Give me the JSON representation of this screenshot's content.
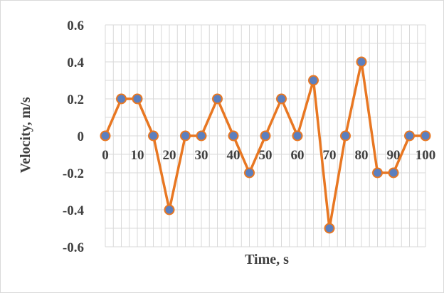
{
  "chart_data": {
    "type": "line",
    "title": "",
    "xlabel": "Time, s",
    "ylabel": "Velocity, m/s",
    "xlim": [
      0,
      100
    ],
    "ylim": [
      -0.6,
      0.6
    ],
    "x_ticks": [
      "0",
      "10",
      "20",
      "30",
      "40",
      "50",
      "60",
      "70",
      "80",
      "90",
      "100"
    ],
    "y_ticks": [
      "0.6",
      "0.4",
      "0.2",
      "0",
      "-0.2",
      "-0.4",
      "-0.6"
    ],
    "grid": true,
    "legend": "none",
    "line_color": "#e87722",
    "marker_fill": "#5b7fbf",
    "marker_stroke": "#e87722",
    "x": [
      0,
      5,
      10,
      15,
      20,
      25,
      30,
      35,
      40,
      45,
      50,
      55,
      60,
      65,
      70,
      75,
      80,
      85,
      90,
      95,
      100
    ],
    "y": [
      0,
      0.2,
      0.2,
      0,
      -0.4,
      0,
      0,
      0.2,
      0,
      -0.2,
      0,
      0.2,
      0,
      0.3,
      -0.5,
      0,
      0.4,
      -0.2,
      -0.2,
      0,
      0
    ]
  }
}
